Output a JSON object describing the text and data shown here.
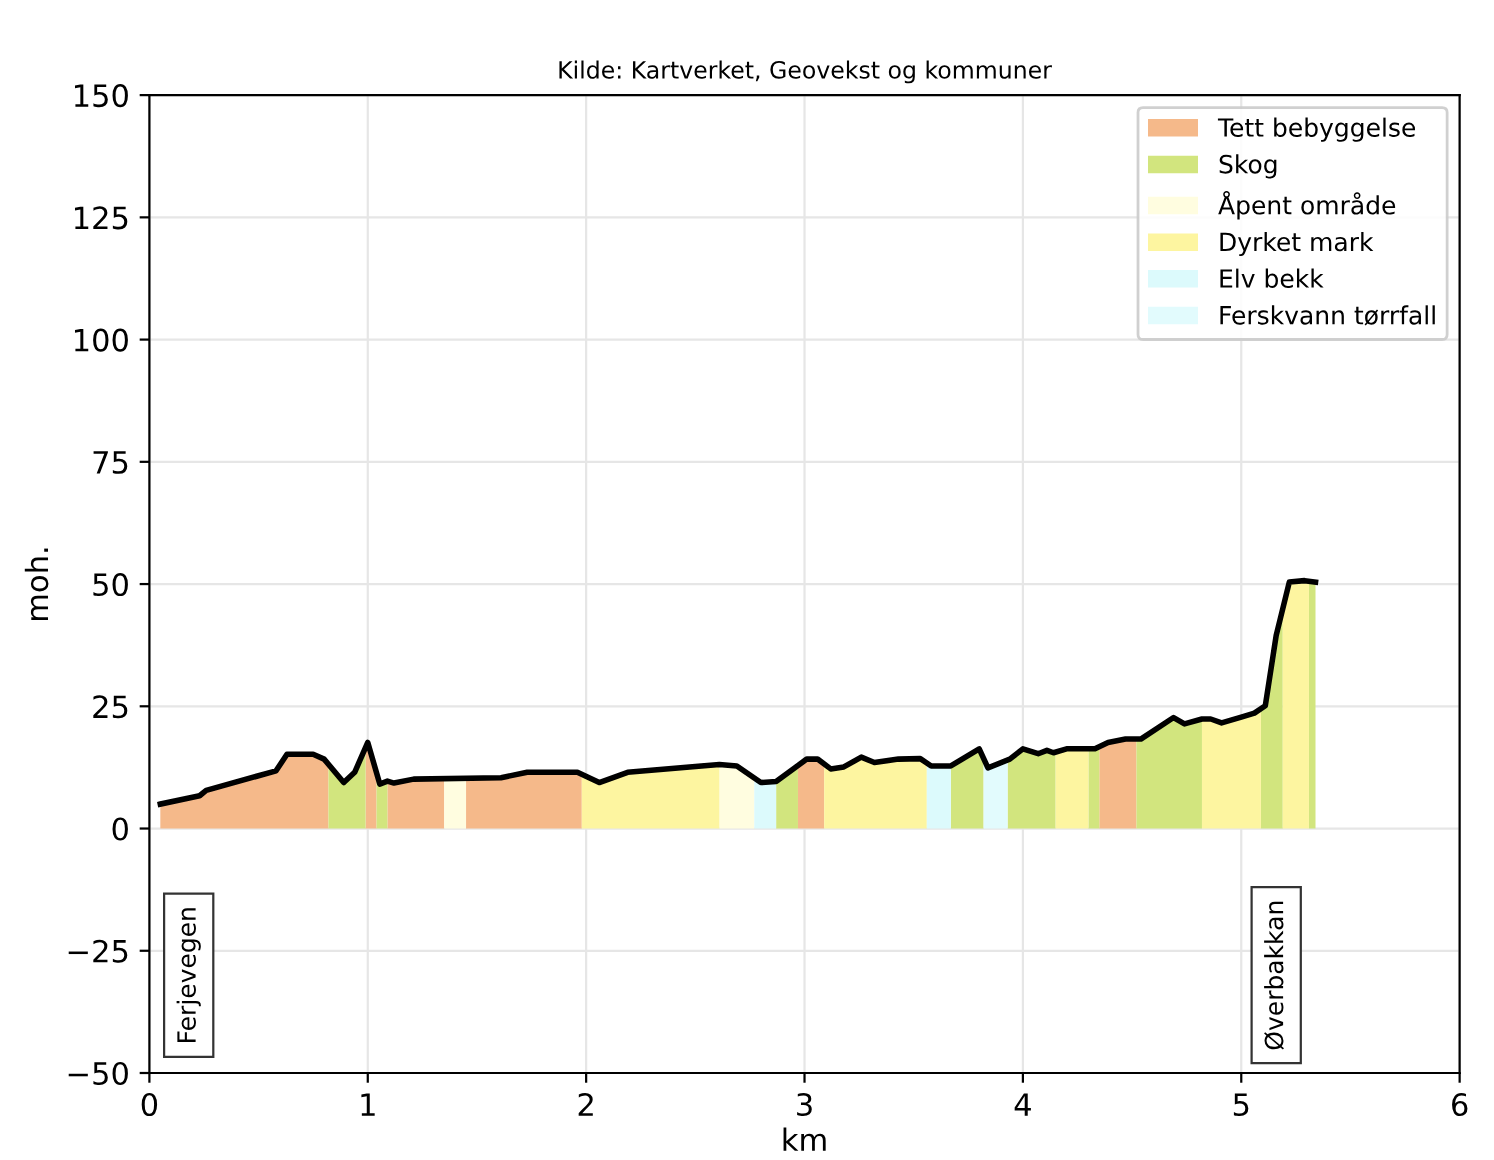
{
  "chart_data": {
    "type": "area",
    "title": "Kilde: Kartverket, Geovekst og kommuner",
    "xlabel": "km",
    "ylabel": "moh.",
    "xlim": [
      0,
      6
    ],
    "xticks": [
      0,
      1,
      2,
      3,
      4,
      5,
      6
    ],
    "ylim": [
      -50,
      150
    ],
    "yticks": [
      -50,
      -25,
      0,
      25,
      50,
      75,
      100,
      125,
      150
    ],
    "grid": true,
    "legend": "top right",
    "annotations": [
      "Ferjevegen",
      "Øverbakkan"
    ],
    "series": [
      {
        "name": "Tett bebyggelse",
        "color": "#f5b98a",
        "x": [
          0.05,
          0.23,
          0.26,
          0.58,
          0.63,
          0.75,
          0.8,
          0.82,
          0.9,
          0.99,
          1.0,
          1.04,
          1.06,
          1.09,
          1.12,
          1.21,
          1.35,
          1.4,
          1.45,
          1.61,
          1.73,
          1.96,
          1.98,
          2.5,
          2.97,
          3.01,
          3.06,
          3.09,
          3.7,
          4.35,
          4.39,
          4.47,
          4.52
        ],
        "values": [
          5.0,
          6.7,
          7.8,
          11.8,
          15.2,
          15.2,
          14.2,
          13.3,
          null,
          16.5,
          17.6,
          11.5,
          null,
          9.7,
          9.3,
          10.1,
          10.2,
          null,
          10.3,
          10.4,
          11.5,
          11.5,
          11.0,
          null,
          13.0,
          14.2,
          14.2,
          13.2,
          null,
          17.0,
          17.6,
          18.3,
          18.3
        ]
      },
      {
        "name": "Skog",
        "color": "#d2e57e",
        "x": [
          0.82,
          0.89,
          0.94,
          0.99,
          1.02,
          1.04,
          1.055,
          1.09,
          2.0,
          2.87,
          2.97,
          3.3,
          3.67,
          3.8,
          3.82,
          3.88,
          3.93,
          3.94,
          4.0,
          4.07,
          4.11,
          4.15,
          4.22,
          4.3,
          4.35,
          4.4,
          4.52,
          4.54,
          4.69,
          4.74,
          4.82,
          4.95,
          5.09,
          5.11,
          5.16,
          5.19,
          5.25,
          5.31,
          5.34
        ],
        "values": [
          13.3,
          9.4,
          11.5,
          16.5,
          null,
          11.5,
          9.1,
          9.7,
          null,
          9.6,
          13.0,
          null,
          12.8,
          16.3,
          14.5,
          null,
          13.8,
          14.2,
          16.3,
          15.3,
          16.0,
          15.5,
          null,
          16.3,
          17.0,
          null,
          18.3,
          18.3,
          22.7,
          21.4,
          22.4,
          null,
          24.3,
          25.1,
          39.5,
          45.0,
          null,
          50.6,
          50.4
        ]
      },
      {
        "name": "Åpent område",
        "color": "#fffde0",
        "x": [
          1.35,
          1.45,
          2.0,
          2.61,
          2.69,
          2.77
        ],
        "values": [
          10.2,
          10.3,
          null,
          13.1,
          12.8,
          10.5
        ]
      },
      {
        "name": "Dyrket mark",
        "color": "#fdf5a0",
        "x": [
          1.98,
          2.06,
          2.19,
          2.61,
          2.8,
          3.09,
          3.12,
          3.18,
          3.26,
          3.32,
          3.43,
          3.53,
          3.56,
          3.9,
          4.15,
          4.2,
          4.3,
          4.6,
          4.82,
          4.86,
          4.91,
          5.0,
          5.06,
          5.09,
          5.14,
          5.19,
          5.22,
          5.29,
          5.31
        ],
        "values": [
          11.0,
          9.4,
          11.5,
          13.1,
          null,
          13.2,
          12.2,
          12.6,
          14.6,
          13.5,
          14.2,
          14.3,
          13.4,
          null,
          15.5,
          16.3,
          16.3,
          null,
          22.4,
          22.4,
          21.6,
          22.8,
          23.6,
          24.3,
          null,
          45.0,
          50.4,
          50.7,
          50.6
        ]
      },
      {
        "name": "Elv bekk",
        "color": "#dcfafc",
        "x": [
          2.77,
          2.8,
          2.87,
          3.2,
          3.56,
          3.58,
          3.67
        ],
        "values": [
          10.5,
          9.4,
          9.6,
          null,
          13.4,
          12.8,
          12.8
        ]
      },
      {
        "name": "Ferskvann tørrfall",
        "color": "#e2fbfd",
        "x": [
          3.82,
          3.84,
          3.93
        ],
        "values": [
          14.5,
          12.4,
          13.8
        ]
      },
      {
        "color": "#000000",
        "type": "line",
        "x": [
          0.05,
          0.23,
          0.26,
          0.58,
          0.63,
          0.75,
          0.8,
          0.89,
          0.94,
          1.0,
          1.055,
          1.09,
          1.12,
          1.21,
          1.61,
          1.73,
          1.96,
          2.06,
          2.19,
          2.61,
          2.69,
          2.8,
          2.87,
          3.01,
          3.06,
          3.12,
          3.18,
          3.26,
          3.32,
          3.43,
          3.53,
          3.58,
          3.67,
          3.8,
          3.84,
          3.94,
          4.0,
          4.07,
          4.11,
          4.14,
          4.2,
          4.33,
          4.39,
          4.47,
          4.54,
          4.69,
          4.74,
          4.82,
          4.86,
          4.91,
          5.0,
          5.06,
          5.11,
          5.16,
          5.22,
          5.29,
          5.34
        ],
        "values": [
          5.0,
          6.7,
          7.8,
          11.8,
          15.2,
          15.2,
          14.2,
          9.4,
          11.5,
          17.6,
          9.1,
          9.7,
          9.3,
          10.1,
          10.4,
          11.5,
          11.5,
          9.4,
          11.5,
          13.1,
          12.8,
          9.4,
          9.6,
          14.2,
          14.2,
          12.2,
          12.6,
          14.6,
          13.5,
          14.2,
          14.3,
          12.8,
          12.8,
          16.3,
          12.4,
          14.2,
          16.3,
          15.3,
          16.0,
          15.5,
          16.3,
          16.3,
          17.6,
          18.3,
          18.3,
          22.7,
          21.4,
          22.4,
          22.4,
          21.6,
          22.8,
          23.6,
          25.1,
          39.5,
          50.4,
          50.7,
          50.4
        ]
      }
    ]
  }
}
